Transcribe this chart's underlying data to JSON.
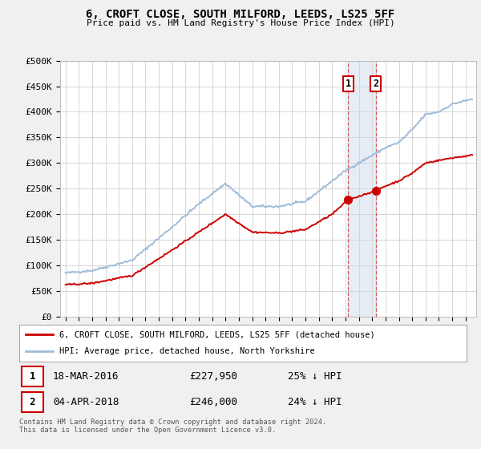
{
  "title": "6, CROFT CLOSE, SOUTH MILFORD, LEEDS, LS25 5FF",
  "subtitle": "Price paid vs. HM Land Registry's House Price Index (HPI)",
  "ylabel_ticks": [
    "£0",
    "£50K",
    "£100K",
    "£150K",
    "£200K",
    "£250K",
    "£300K",
    "£350K",
    "£400K",
    "£450K",
    "£500K"
  ],
  "ytick_vals": [
    0,
    50000,
    100000,
    150000,
    200000,
    250000,
    300000,
    350000,
    400000,
    450000,
    500000
  ],
  "ylim": [
    0,
    500000
  ],
  "xlim_start": 1994.6,
  "xlim_end": 2025.8,
  "hpi_color": "#a0bcd8",
  "price_color": "#cc0000",
  "marker_color": "#cc0000",
  "vline_color": "#cc0000",
  "vline_alpha": 0.6,
  "shade_color": "#c8d8ea",
  "shade_alpha": 0.45,
  "transaction1_date": 2016.21,
  "transaction1_price": 227950,
  "transaction2_date": 2018.26,
  "transaction2_price": 246000,
  "transaction1_label": "1",
  "transaction2_label": "2",
  "legend_line1": "6, CROFT CLOSE, SOUTH MILFORD, LEEDS, LS25 5FF (detached house)",
  "legend_line2": "HPI: Average price, detached house, North Yorkshire",
  "table_row1": [
    "1",
    "18-MAR-2016",
    "£227,950",
    "25% ↓ HPI"
  ],
  "table_row2": [
    "2",
    "04-APR-2018",
    "£246,000",
    "24% ↓ HPI"
  ],
  "footnote": "Contains HM Land Registry data © Crown copyright and database right 2024.\nThis data is licensed under the Open Government Licence v3.0.",
  "background_color": "#f0f0f0",
  "plot_bg_color": "#ffffff",
  "grid_color": "#d0d0d0",
  "hpi_knots": [
    1995,
    1997,
    2000,
    2003,
    2005,
    2007,
    2009,
    2011,
    2013,
    2015,
    2016,
    2017,
    2018,
    2019,
    2020,
    2021,
    2022,
    2023,
    2024,
    2025.5
  ],
  "hpi_vals": [
    85000,
    90000,
    110000,
    175000,
    220000,
    260000,
    215000,
    215000,
    225000,
    265000,
    285000,
    300000,
    315000,
    330000,
    340000,
    365000,
    395000,
    400000,
    415000,
    425000
  ],
  "price_knots": [
    1995,
    1997,
    2000,
    2003,
    2005,
    2007,
    2009,
    2011,
    2013,
    2015,
    2016.21,
    2017,
    2018.26,
    2019,
    2020,
    2021,
    2022,
    2023,
    2024,
    2025.5
  ],
  "price_vals": [
    62000,
    65000,
    80000,
    130000,
    165000,
    200000,
    165000,
    163000,
    170000,
    200000,
    227950,
    235000,
    246000,
    255000,
    265000,
    280000,
    300000,
    305000,
    310000,
    315000
  ]
}
